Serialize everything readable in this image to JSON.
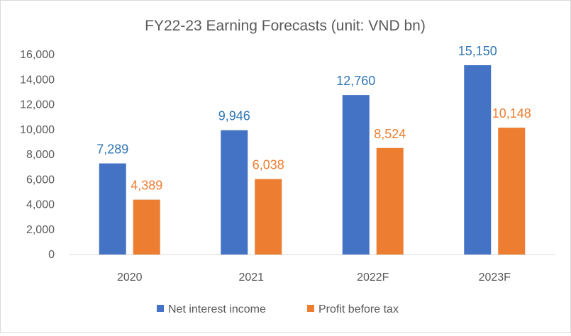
{
  "chart_data": {
    "type": "bar",
    "title": "FY22-23 Earning Forecasts (unit: VND bn)",
    "xlabel": "",
    "ylabel": "",
    "categories": [
      "2020",
      "2021",
      "2022F",
      "2023F"
    ],
    "ylim": [
      0,
      16000
    ],
    "yticks": [
      0,
      2000,
      4000,
      6000,
      8000,
      10000,
      12000,
      14000,
      16000
    ],
    "ytick_labels": [
      "0",
      "2,000",
      "4,000",
      "6,000",
      "8,000",
      "10,000",
      "12,000",
      "14,000",
      "16,000"
    ],
    "grid": false,
    "legend_position": "bottom",
    "series": [
      {
        "name": "Net interest income",
        "color": "#4472C4",
        "label_color": "#2E75B6",
        "values": [
          7289,
          9946,
          12760,
          15150
        ],
        "labels": [
          "7,289",
          "9,946",
          "12,760",
          "15,150"
        ]
      },
      {
        "name": "Profit before tax",
        "color": "#ED7D31",
        "label_color": "#ED7D31",
        "values": [
          4389,
          6038,
          8524,
          10148
        ],
        "labels": [
          "4,389",
          "6,038",
          "8,524",
          "10,148"
        ]
      }
    ]
  }
}
